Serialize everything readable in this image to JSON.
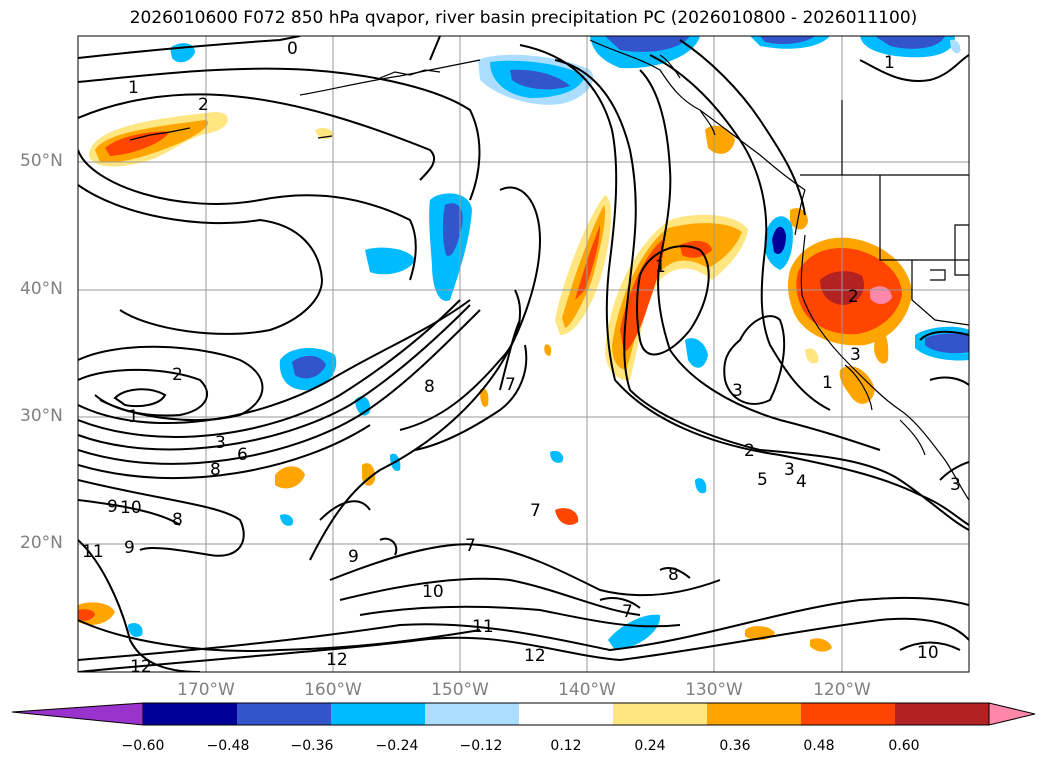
{
  "title": "2026010600 F072 850 hPa qvapor, river basin precipitation PC (2026010800 - 2026011100)",
  "lat_labels": [
    "50°N",
    "40°N",
    "30°N",
    "20°N"
  ],
  "lon_labels": [
    "170°W",
    "160°W",
    "150°W",
    "140°W",
    "130°W",
    "120°W"
  ],
  "colorbar": {
    "colors": [
      "#9933cc",
      "#000099",
      "#3355cc",
      "#00bbff",
      "#aaddff",
      "#ffffff",
      "#ffe680",
      "#ffa500",
      "#ff4500",
      "#b22222",
      "#ff88aa"
    ],
    "ticks": [
      "−0.60",
      "−0.48",
      "−0.36",
      "−0.24",
      "−0.12",
      "0.12",
      "0.24",
      "0.36",
      "0.48",
      "0.60"
    ]
  },
  "contour_labels": [
    "0",
    "1",
    "2",
    "1",
    "2",
    "1",
    "3",
    "6",
    "8",
    "9",
    "10",
    "8",
    "9",
    "11",
    "12",
    "12",
    "12",
    "10",
    "11",
    "7",
    "8",
    "9",
    "7",
    "7",
    "7",
    "2",
    "3",
    "5",
    "4",
    "3",
    "1",
    "2",
    "3",
    "1",
    "3",
    "8",
    "10"
  ]
}
